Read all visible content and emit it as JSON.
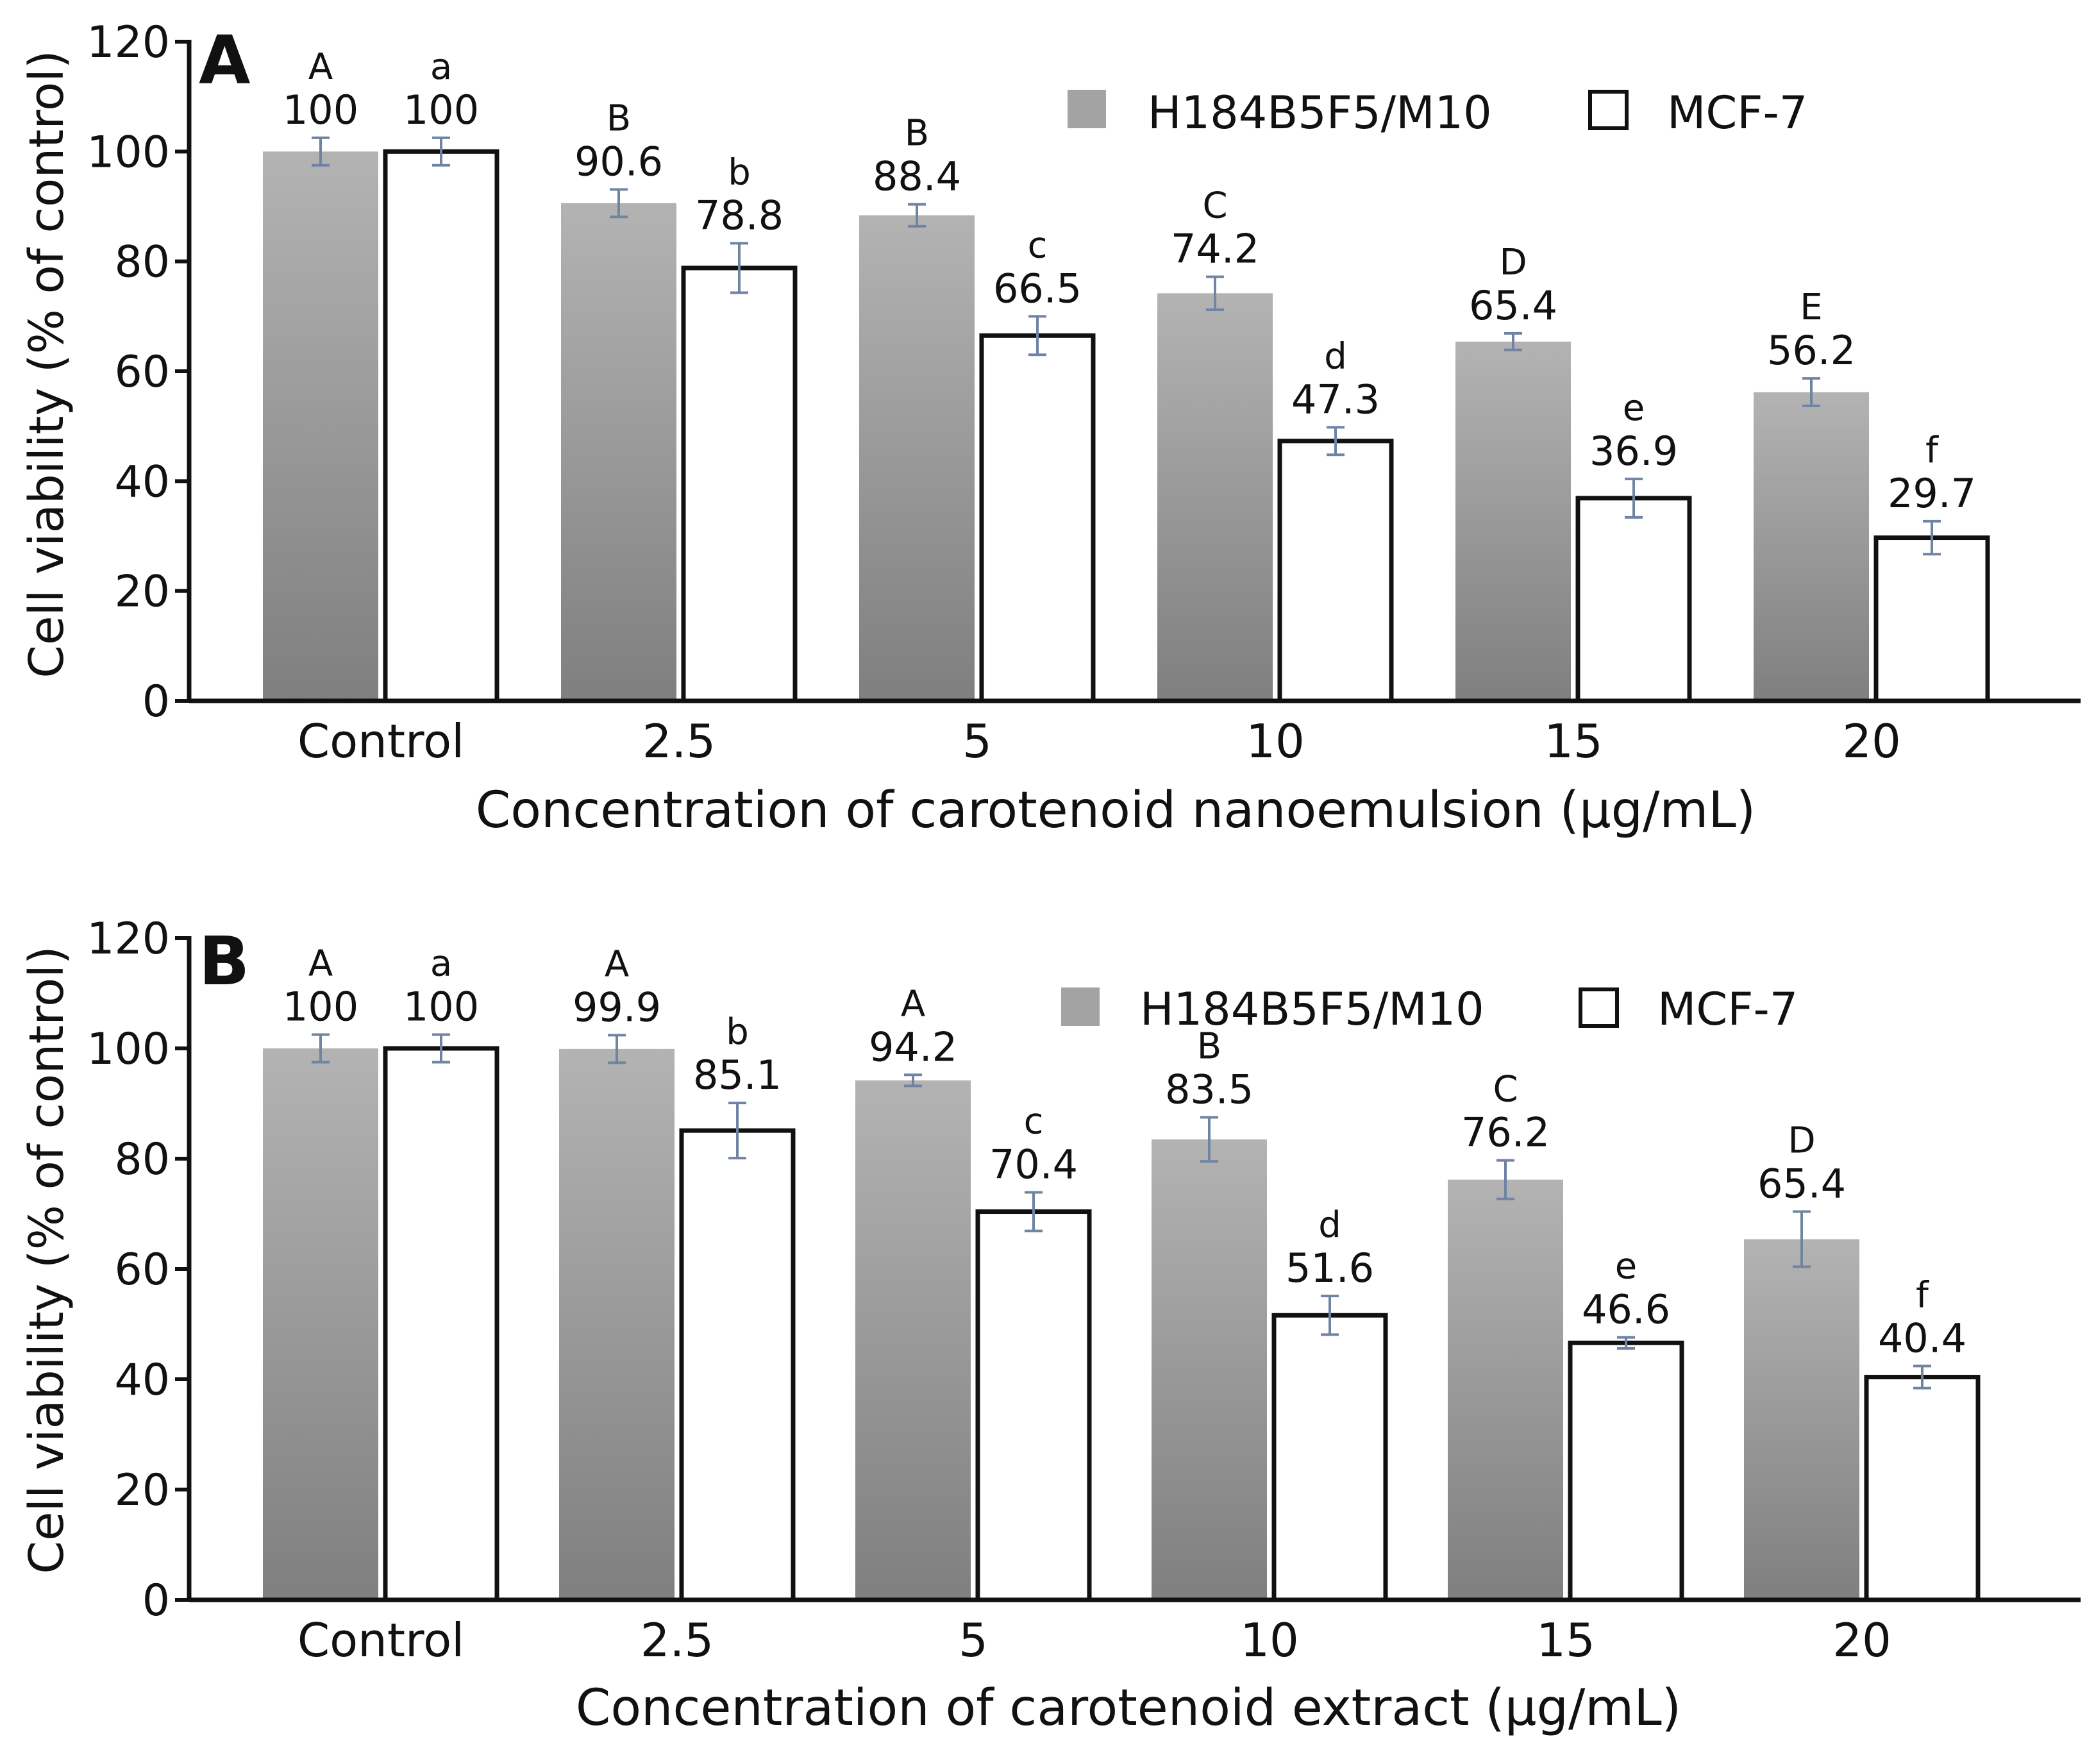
{
  "legend": {
    "series_a": "H184B5F5/M10",
    "series_b": "MCF-7"
  },
  "colors": {
    "gray_top": "#b3b3b3",
    "gray_bottom": "#7f7f7f",
    "white_bar": "#ffffff",
    "error_bar": "#6f84a3",
    "axis": "#111111"
  },
  "chart_data": [
    {
      "type": "bar",
      "panel": "A",
      "title": "",
      "xlabel": "Concentration of carotenoid nanoemulsion (μg/mL)",
      "ylabel": "Cell viability (% of control)",
      "ylim": [
        0,
        120
      ],
      "yticks": [
        0,
        20,
        40,
        60,
        80,
        100,
        120
      ],
      "categories": [
        "Control",
        "2.5",
        "5",
        "10",
        "15",
        "20"
      ],
      "series": [
        {
          "name": "H184B5F5/M10",
          "values": [
            100,
            90.6,
            88.4,
            74.2,
            65.4,
            56.2
          ],
          "errors": [
            2.5,
            2.5,
            2.0,
            3.0,
            1.5,
            2.5
          ],
          "letters": [
            "A",
            "B",
            "B",
            "C",
            "D",
            "E"
          ]
        },
        {
          "name": "MCF-7",
          "values": [
            100,
            78.8,
            66.5,
            47.3,
            36.9,
            29.7
          ],
          "errors": [
            2.5,
            4.5,
            3.5,
            2.5,
            3.5,
            3.0
          ],
          "letters": [
            "a",
            "b",
            "c",
            "d",
            "e",
            "f"
          ]
        }
      ]
    },
    {
      "type": "bar",
      "panel": "B",
      "title": "",
      "xlabel": "Concentration of carotenoid extract (μg/mL)",
      "ylabel": "Cell viability (% of control)",
      "ylim": [
        0,
        120
      ],
      "yticks": [
        0,
        20,
        40,
        60,
        80,
        100,
        120
      ],
      "categories": [
        "Control",
        "2.5",
        "5",
        "10",
        "15",
        "20"
      ],
      "series": [
        {
          "name": "H184B5F5/M10",
          "values": [
            100,
            99.9,
            94.2,
            83.5,
            76.2,
            65.4
          ],
          "errors": [
            2.5,
            2.5,
            1.0,
            4.0,
            3.5,
            5.0
          ],
          "letters": [
            "A",
            "A",
            "A",
            "B",
            "C",
            "D"
          ]
        },
        {
          "name": "MCF-7",
          "values": [
            100,
            85.1,
            70.4,
            51.6,
            46.6,
            40.4
          ],
          "errors": [
            2.5,
            5.0,
            3.5,
            3.5,
            1.0,
            2.0
          ],
          "letters": [
            "a",
            "b",
            "c",
            "d",
            "e",
            "f"
          ]
        }
      ]
    }
  ]
}
